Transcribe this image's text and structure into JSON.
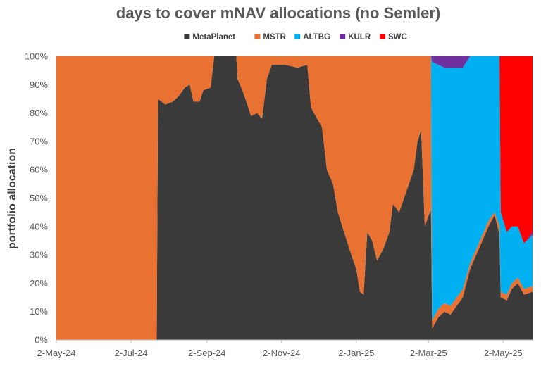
{
  "chart_data": {
    "type": "area",
    "title": "days to cover mNAV allocations (no Semler)",
    "xlabel": "",
    "ylabel": "portfolio allocation",
    "stacked": true,
    "normalized": true,
    "grid": false,
    "legend_position": "top",
    "ylim": [
      0,
      100
    ],
    "y_ticks": [
      "0%",
      "10%",
      "20%",
      "30%",
      "40%",
      "50%",
      "60%",
      "70%",
      "80%",
      "90%",
      "100%"
    ],
    "x_ticks": [
      "2-May-24",
      "2-Jul-24",
      "2-Sep-24",
      "2-Nov-24",
      "2-Jan-25",
      "2-Mar-25",
      "2-May-25"
    ],
    "x_range": [
      "2024-05-02",
      "2025-05-26"
    ],
    "stack_order": [
      "MetaPlanet",
      "MSTR",
      "ALTBG",
      "KULR",
      "SWC"
    ],
    "series": [
      {
        "name": "MetaPlanet",
        "color": "#3a3a3a",
        "points": [
          [
            "2024-05-02",
            0
          ],
          [
            "2024-07-23",
            0
          ],
          [
            "2024-07-24",
            85
          ],
          [
            "2024-07-30",
            83
          ],
          [
            "2024-08-05",
            84
          ],
          [
            "2024-08-10",
            86
          ],
          [
            "2024-08-15",
            89
          ],
          [
            "2024-08-19",
            90
          ],
          [
            "2024-08-22",
            84
          ],
          [
            "2024-08-27",
            84
          ],
          [
            "2024-08-30",
            88
          ],
          [
            "2024-09-05",
            89
          ],
          [
            "2024-09-08",
            100
          ],
          [
            "2024-09-12",
            100
          ],
          [
            "2024-09-20",
            100
          ],
          [
            "2024-09-26",
            100
          ],
          [
            "2024-09-27",
            92
          ],
          [
            "2024-10-01",
            88
          ],
          [
            "2024-10-05",
            83
          ],
          [
            "2024-10-08",
            79
          ],
          [
            "2024-10-13",
            80
          ],
          [
            "2024-10-17",
            78
          ],
          [
            "2024-10-21",
            92
          ],
          [
            "2024-10-25",
            97
          ],
          [
            "2024-11-05",
            97
          ],
          [
            "2024-11-15",
            96
          ],
          [
            "2024-11-23",
            97
          ],
          [
            "2024-11-26",
            82
          ],
          [
            "2024-12-01",
            78
          ],
          [
            "2024-12-05",
            75
          ],
          [
            "2024-12-09",
            60
          ],
          [
            "2024-12-14",
            55
          ],
          [
            "2024-12-18",
            45
          ],
          [
            "2024-12-23",
            38
          ],
          [
            "2024-12-29",
            30
          ],
          [
            "2025-01-02",
            25
          ],
          [
            "2025-01-05",
            17
          ],
          [
            "2025-01-08",
            16
          ],
          [
            "2025-01-11",
            38
          ],
          [
            "2025-01-15",
            35
          ],
          [
            "2025-01-19",
            28
          ],
          [
            "2025-01-24",
            32
          ],
          [
            "2025-01-29",
            38
          ],
          [
            "2025-02-01",
            48
          ],
          [
            "2025-02-06",
            45
          ],
          [
            "2025-02-10",
            50
          ],
          [
            "2025-02-14",
            55
          ],
          [
            "2025-02-18",
            60
          ],
          [
            "2025-02-21",
            70
          ],
          [
            "2025-02-24",
            74
          ],
          [
            "2025-02-27",
            40
          ],
          [
            "2025-03-03",
            45
          ],
          [
            "2025-03-05",
            4
          ],
          [
            "2025-03-10",
            8
          ],
          [
            "2025-03-15",
            10
          ],
          [
            "2025-03-20",
            9
          ],
          [
            "2025-03-25",
            12
          ],
          [
            "2025-03-30",
            15
          ],
          [
            "2025-04-05",
            25
          ],
          [
            "2025-04-10",
            30
          ],
          [
            "2025-04-15",
            35
          ],
          [
            "2025-04-20",
            40
          ],
          [
            "2025-04-25",
            44
          ],
          [
            "2025-04-30",
            15
          ],
          [
            "2025-05-05",
            14
          ],
          [
            "2025-05-09",
            18
          ],
          [
            "2025-05-14",
            20
          ],
          [
            "2025-05-19",
            16
          ],
          [
            "2025-05-26",
            17
          ]
        ]
      },
      {
        "name": "MSTR",
        "color": "#e97132",
        "points": [
          [
            "2024-05-02",
            100
          ],
          [
            "2024-07-23",
            100
          ],
          [
            "2024-07-24",
            15
          ],
          [
            "2024-07-30",
            17
          ],
          [
            "2024-08-05",
            16
          ],
          [
            "2024-08-10",
            14
          ],
          [
            "2024-08-15",
            11
          ],
          [
            "2024-08-19",
            10
          ],
          [
            "2024-08-22",
            16
          ],
          [
            "2024-08-27",
            16
          ],
          [
            "2024-08-30",
            12
          ],
          [
            "2024-09-05",
            11
          ],
          [
            "2024-09-08",
            0
          ],
          [
            "2024-09-12",
            0
          ],
          [
            "2024-09-20",
            0
          ],
          [
            "2024-09-26",
            0
          ],
          [
            "2024-09-27",
            8
          ],
          [
            "2024-10-01",
            12
          ],
          [
            "2024-10-05",
            17
          ],
          [
            "2024-10-08",
            21
          ],
          [
            "2024-10-13",
            20
          ],
          [
            "2024-10-17",
            22
          ],
          [
            "2024-10-21",
            8
          ],
          [
            "2024-10-25",
            3
          ],
          [
            "2024-11-05",
            3
          ],
          [
            "2024-11-15",
            4
          ],
          [
            "2024-11-23",
            3
          ],
          [
            "2024-11-26",
            18
          ],
          [
            "2024-12-01",
            22
          ],
          [
            "2024-12-05",
            25
          ],
          [
            "2024-12-09",
            40
          ],
          [
            "2024-12-14",
            45
          ],
          [
            "2024-12-18",
            55
          ],
          [
            "2024-12-23",
            62
          ],
          [
            "2024-12-29",
            70
          ],
          [
            "2025-01-02",
            75
          ],
          [
            "2025-01-05",
            83
          ],
          [
            "2025-01-08",
            84
          ],
          [
            "2025-01-11",
            62
          ],
          [
            "2025-01-15",
            65
          ],
          [
            "2025-01-19",
            72
          ],
          [
            "2025-01-24",
            68
          ],
          [
            "2025-01-29",
            62
          ],
          [
            "2025-02-01",
            52
          ],
          [
            "2025-02-06",
            55
          ],
          [
            "2025-02-10",
            50
          ],
          [
            "2025-02-14",
            45
          ],
          [
            "2025-02-18",
            40
          ],
          [
            "2025-02-21",
            30
          ],
          [
            "2025-02-24",
            26
          ],
          [
            "2025-02-27",
            60
          ],
          [
            "2025-03-03",
            55
          ],
          [
            "2025-03-05",
            3
          ],
          [
            "2025-03-10",
            3
          ],
          [
            "2025-03-15",
            3
          ],
          [
            "2025-03-20",
            3
          ],
          [
            "2025-03-25",
            3
          ],
          [
            "2025-03-30",
            3
          ],
          [
            "2025-04-05",
            2
          ],
          [
            "2025-04-10",
            2
          ],
          [
            "2025-04-15",
            2
          ],
          [
            "2025-04-20",
            2
          ],
          [
            "2025-04-25",
            1
          ],
          [
            "2025-04-30",
            2
          ],
          [
            "2025-05-05",
            2
          ],
          [
            "2025-05-09",
            2
          ],
          [
            "2025-05-14",
            2
          ],
          [
            "2025-05-19",
            2
          ],
          [
            "2025-05-26",
            2
          ]
        ]
      },
      {
        "name": "ALTBG",
        "color": "#00b0f0",
        "points": [
          [
            "2024-05-02",
            0
          ],
          [
            "2025-03-04",
            0
          ],
          [
            "2025-03-05",
            91
          ],
          [
            "2025-03-10",
            86
          ],
          [
            "2025-03-15",
            83
          ],
          [
            "2025-03-20",
            84
          ],
          [
            "2025-03-25",
            81
          ],
          [
            "2025-03-30",
            78
          ],
          [
            "2025-04-05",
            73
          ],
          [
            "2025-04-10",
            68
          ],
          [
            "2025-04-15",
            63
          ],
          [
            "2025-04-20",
            58
          ],
          [
            "2025-04-25",
            55
          ],
          [
            "2025-04-30",
            28
          ],
          [
            "2025-05-05",
            22
          ],
          [
            "2025-05-09",
            20
          ],
          [
            "2025-05-14",
            18
          ],
          [
            "2025-05-19",
            16
          ],
          [
            "2025-05-26",
            18
          ]
        ]
      },
      {
        "name": "KULR",
        "color": "#7030a0",
        "points": [
          [
            "2024-05-02",
            0
          ],
          [
            "2025-03-04",
            0
          ],
          [
            "2025-03-05",
            2
          ],
          [
            "2025-03-10",
            3
          ],
          [
            "2025-03-15",
            4
          ],
          [
            "2025-03-20",
            4
          ],
          [
            "2025-03-25",
            4
          ],
          [
            "2025-03-30",
            4
          ],
          [
            "2025-04-05",
            0
          ],
          [
            "2025-04-30",
            0
          ],
          [
            "2025-05-05",
            0
          ],
          [
            "2025-05-09",
            0
          ],
          [
            "2025-05-14",
            0
          ],
          [
            "2025-05-19",
            0
          ],
          [
            "2025-05-26",
            1
          ]
        ]
      },
      {
        "name": "SWC",
        "color": "#ff0000",
        "points": [
          [
            "2024-05-02",
            0
          ],
          [
            "2025-04-29",
            0
          ],
          [
            "2025-04-30",
            55
          ],
          [
            "2025-05-05",
            62
          ],
          [
            "2025-05-09",
            60
          ],
          [
            "2025-05-14",
            60
          ],
          [
            "2025-05-19",
            66
          ],
          [
            "2025-05-26",
            62
          ]
        ]
      }
    ]
  }
}
